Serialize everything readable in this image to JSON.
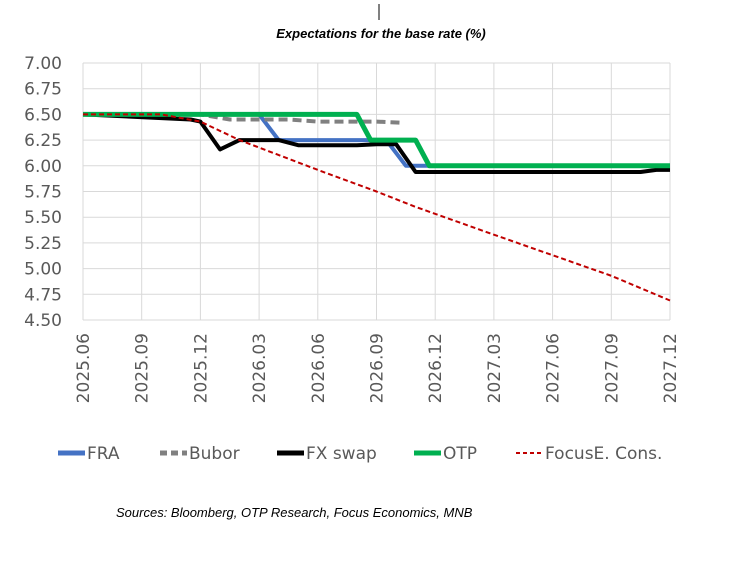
{
  "chart_data": {
    "type": "line",
    "title": "Expectations for the base rate (%)",
    "source": "Sources: Bloomberg, OTP Research, Focus Economics, MNB",
    "ylim": [
      4.5,
      7.0
    ],
    "ystep": 0.25,
    "y_ticks": [
      "4.50",
      "4.75",
      "5.00",
      "5.25",
      "5.50",
      "5.75",
      "6.00",
      "6.25",
      "6.50",
      "6.75",
      "7.00"
    ],
    "x_ticks": [
      "2025.06",
      "2025.09",
      "2025.12",
      "2026.03",
      "2026.06",
      "2026.09",
      "2026.12",
      "2027.03",
      "2027.06",
      "2027.09",
      "2027.12"
    ],
    "x_range": [
      0,
      30
    ],
    "grid": true,
    "series": [
      {
        "name": "FRA",
        "color": "#4472c4",
        "style": "solid",
        "width": 4,
        "points": [
          [
            0,
            6.5
          ],
          [
            9,
            6.5
          ],
          [
            10,
            6.25
          ],
          [
            15.5,
            6.25
          ],
          [
            16.5,
            6.0
          ],
          [
            30,
            6.0
          ]
        ]
      },
      {
        "name": "Bubor",
        "color": "#808080",
        "style": "dashed",
        "width": 4,
        "points": [
          [
            0,
            6.5
          ],
          [
            6,
            6.5
          ],
          [
            7.5,
            6.45
          ],
          [
            10.5,
            6.45
          ],
          [
            12,
            6.43
          ],
          [
            15,
            6.43
          ],
          [
            16.2,
            6.42
          ]
        ]
      },
      {
        "name": "FX swap",
        "color": "#000000",
        "style": "solid",
        "width": 4,
        "points": [
          [
            0,
            6.5
          ],
          [
            5.5,
            6.45
          ],
          [
            6,
            6.43
          ],
          [
            7,
            6.16
          ],
          [
            8,
            6.25
          ],
          [
            10,
            6.25
          ],
          [
            11,
            6.2
          ],
          [
            14,
            6.2
          ],
          [
            15,
            6.21
          ],
          [
            16,
            6.21
          ],
          [
            17,
            5.94
          ],
          [
            28.5,
            5.94
          ],
          [
            29.3,
            5.96
          ],
          [
            30,
            5.96
          ]
        ]
      },
      {
        "name": "OTP",
        "color": "#00b050",
        "style": "solid",
        "width": 5,
        "points": [
          [
            0,
            6.5
          ],
          [
            14,
            6.5
          ],
          [
            14.7,
            6.25
          ],
          [
            17,
            6.25
          ],
          [
            17.7,
            6.0
          ],
          [
            30,
            6.0
          ]
        ]
      },
      {
        "name": "FocusE. Cons.",
        "color": "#c00000",
        "style": "dashed",
        "width": 2,
        "points": [
          [
            0,
            6.5
          ],
          [
            4,
            6.5
          ],
          [
            6,
            6.43
          ],
          [
            8,
            6.25
          ],
          [
            12,
            5.96
          ],
          [
            15,
            5.75
          ],
          [
            17,
            5.6
          ],
          [
            21,
            5.33
          ],
          [
            24,
            5.13
          ],
          [
            27,
            4.93
          ],
          [
            30,
            4.69
          ]
        ]
      }
    ]
  }
}
